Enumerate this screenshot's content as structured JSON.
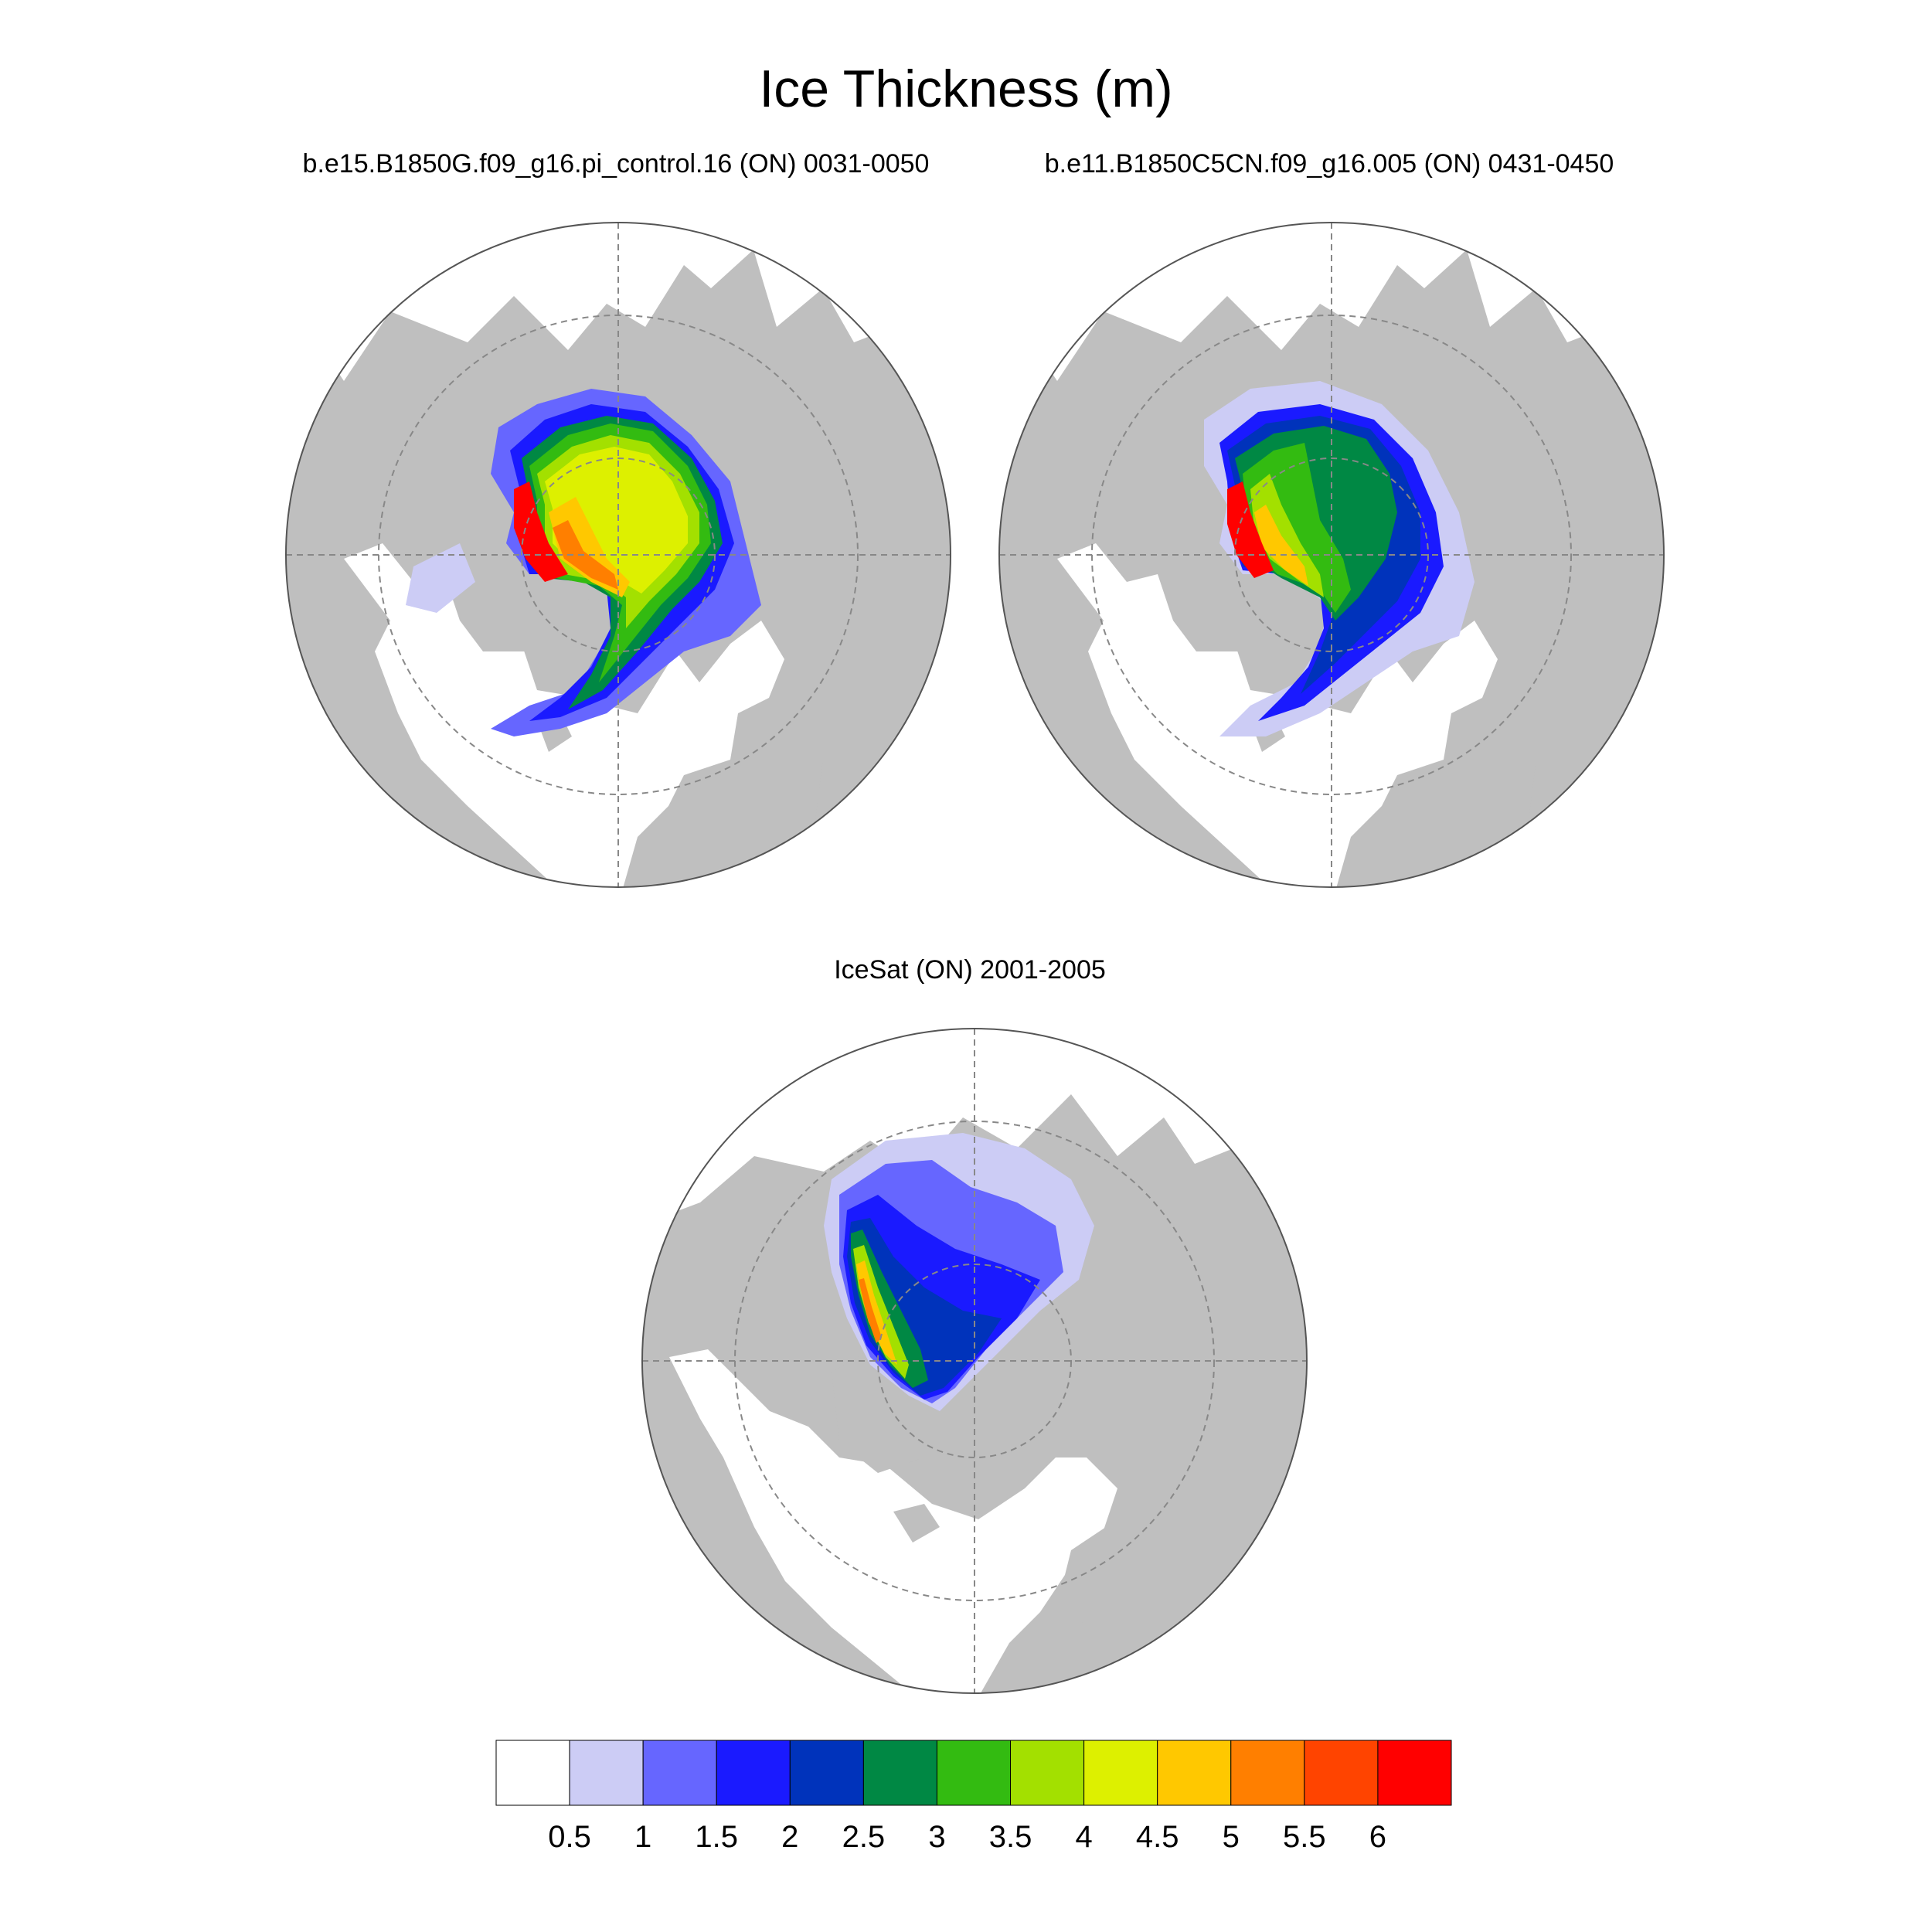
{
  "title": "Ice Thickness (m)",
  "panels": [
    {
      "id": "model1",
      "title": "b.e15.B1850G.f09_g16.pi_control.16 (ON) 0031-0050"
    },
    {
      "id": "model2",
      "title": "b.e11.B1850C5CN.f09_g16.005 (ON) 0431-0450"
    },
    {
      "id": "obs",
      "title": "IceSat (ON) 2001-2005"
    }
  ],
  "colorbar": {
    "colors": [
      "#FFFFFF",
      "#CCCCF5",
      "#6666FF",
      "#1A1AFF",
      "#0033BB",
      "#008844",
      "#33BB11",
      "#A3E000",
      "#DDF000",
      "#FFC800",
      "#FF7F00",
      "#FF4400",
      "#FF0000"
    ],
    "labels": [
      "0.5",
      "1",
      "1.5",
      "2",
      "2.5",
      "3",
      "3.5",
      "4",
      "4.5",
      "5",
      "5.5",
      "6"
    ]
  },
  "map_colors": {
    "land": "#BFBFBF",
    "ocean": "#FFFFFF",
    "grid": "#888888",
    "outline": "#555555"
  }
}
